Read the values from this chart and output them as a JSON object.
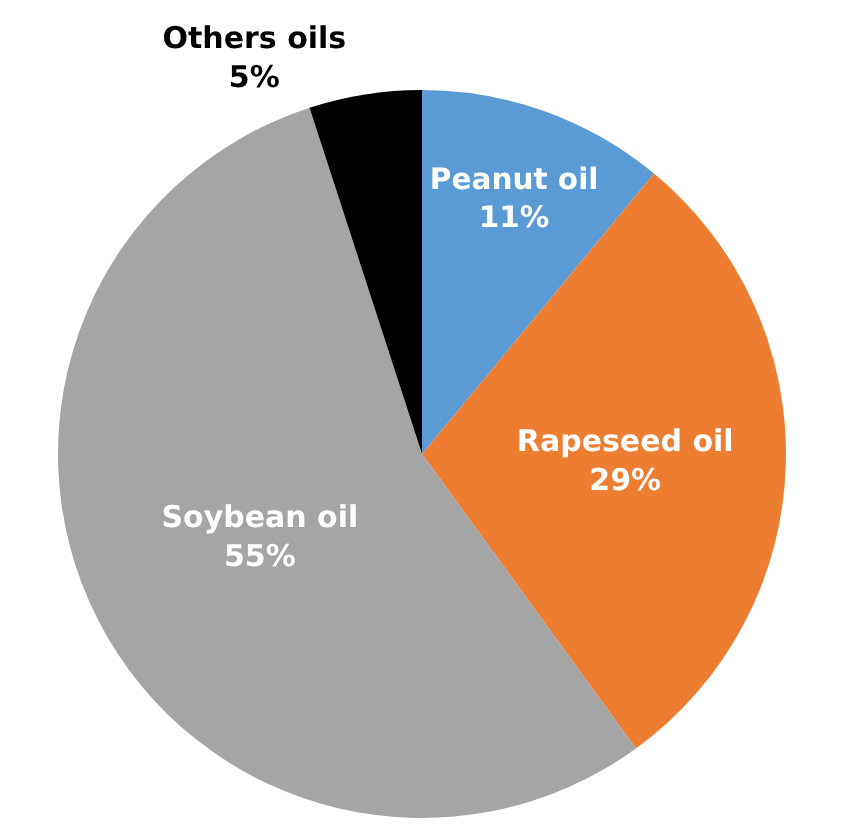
{
  "chart_data": {
    "type": "pie",
    "categories": [
      "Peanut oil",
      "Rapeseed oil",
      "Soybean oil",
      "Others oils"
    ],
    "values": [
      11,
      29,
      55,
      5
    ],
    "colors": [
      "#5b9bd5",
      "#ed7d31",
      "#a5a5a5",
      "#000000"
    ],
    "value_labels": [
      "11%",
      "29%",
      "55%",
      "5%"
    ],
    "legend": false
  }
}
